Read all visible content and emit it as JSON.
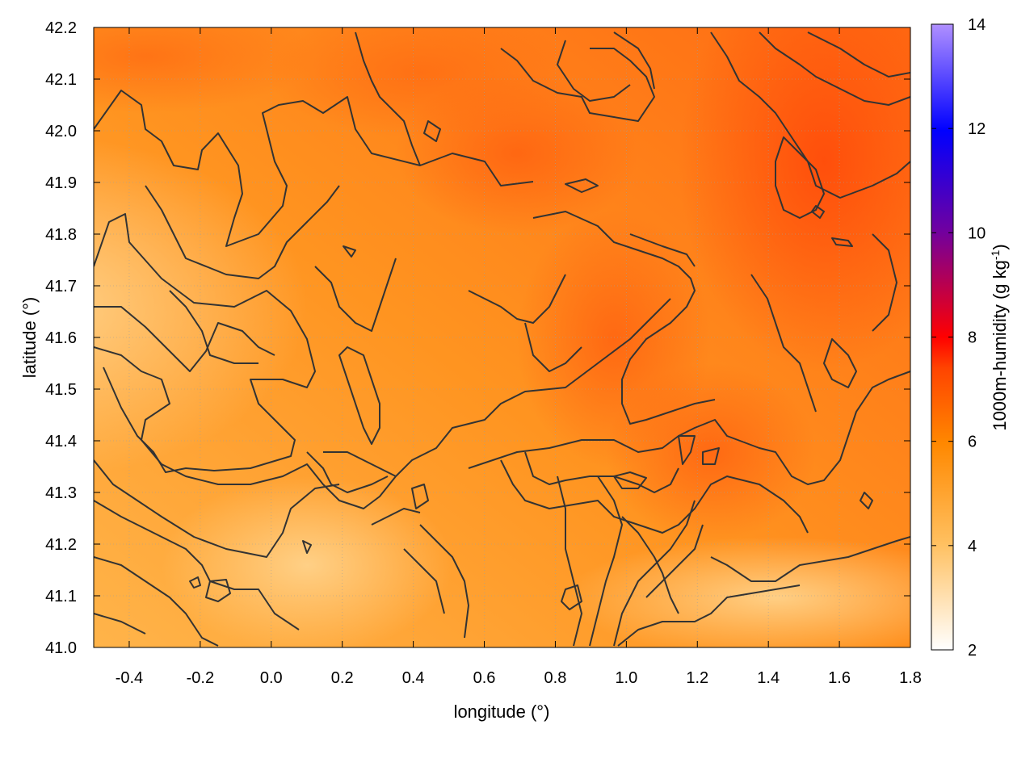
{
  "chart_data": {
    "type": "heatmap",
    "title": "",
    "xlabel": "longitude (°)",
    "ylabel": "latitude (°)",
    "colorbar_label": "1000m-humidity (g kg",
    "colorbar_label_sup": "-1",
    "colorbar_label_close": ")",
    "xlim": [
      -0.5,
      1.8
    ],
    "ylim": [
      41.0,
      42.2
    ],
    "clim": [
      2,
      14
    ],
    "x_ticks": [
      -0.4,
      -0.2,
      0.0,
      0.2,
      0.4,
      0.6,
      0.8,
      1.0,
      1.2,
      1.4,
      1.6,
      1.8
    ],
    "x_tick_labels": [
      "-0.4",
      "-0.2",
      "0.0",
      "0.2",
      "0.4",
      "0.6",
      "0.8",
      "1.0",
      "1.2",
      "1.4",
      "1.6",
      "1.8"
    ],
    "y_ticks": [
      41.0,
      41.1,
      41.2,
      41.3,
      41.4,
      41.5,
      41.6,
      41.7,
      41.8,
      41.9,
      42.0,
      42.1,
      42.2
    ],
    "y_tick_labels": [
      "41.0",
      "41.1",
      "41.2",
      "41.3",
      "41.4",
      "41.5",
      "41.6",
      "41.7",
      "41.8",
      "41.9",
      "42.0",
      "42.1",
      "42.2"
    ],
    "cbar_ticks": [
      2,
      4,
      6,
      8,
      10,
      12,
      14
    ],
    "cbar_tick_labels": [
      "2",
      "4",
      "6",
      "8",
      "10",
      "12",
      "14"
    ],
    "colormap": [
      "#ffffff",
      "#ffc060",
      "#ff8800",
      "#ff4400",
      "#ff0000",
      "#7000a0",
      "#0000ff",
      "#b090ff"
    ],
    "grid": true,
    "field_samples": [
      {
        "lon": -0.45,
        "lat": 41.1,
        "value": 4.3
      },
      {
        "lon": -0.45,
        "lat": 41.5,
        "value": 4.1
      },
      {
        "lon": -0.2,
        "lat": 41.2,
        "value": 4.4
      },
      {
        "lon": 0.1,
        "lat": 41.0,
        "value": 4.2
      },
      {
        "lon": 0.2,
        "lat": 41.3,
        "value": 4.3
      },
      {
        "lon": 0.5,
        "lat": 41.1,
        "value": 4.7
      },
      {
        "lon": 1.2,
        "lat": 41.1,
        "value": 4.9
      },
      {
        "lon": 1.6,
        "lat": 41.2,
        "value": 4.9
      },
      {
        "lon": 0.0,
        "lat": 41.6,
        "value": 5.2
      },
      {
        "lon": 0.2,
        "lat": 41.7,
        "value": 5.3
      },
      {
        "lon": 0.6,
        "lat": 41.5,
        "value": 5.6
      },
      {
        "lon": 0.9,
        "lat": 41.3,
        "value": 6.2
      },
      {
        "lon": 1.2,
        "lat": 41.6,
        "value": 6.3
      },
      {
        "lon": 1.6,
        "lat": 41.8,
        "value": 6.6
      },
      {
        "lon": 1.5,
        "lat": 42.05,
        "value": 6.9
      },
      {
        "lon": 1.8,
        "lat": 42.0,
        "value": 6.8
      },
      {
        "lon": 1.0,
        "lat": 42.1,
        "value": 6.0
      },
      {
        "lon": 0.5,
        "lat": 42.15,
        "value": 6.1
      },
      {
        "lon": -0.45,
        "lat": 42.18,
        "value": 6.3
      },
      {
        "lon": -0.2,
        "lat": 41.95,
        "value": 5.4
      },
      {
        "lon": 0.9,
        "lat": 41.75,
        "value": 6.1
      },
      {
        "lon": 0.3,
        "lat": 41.95,
        "value": 5.7
      }
    ]
  }
}
